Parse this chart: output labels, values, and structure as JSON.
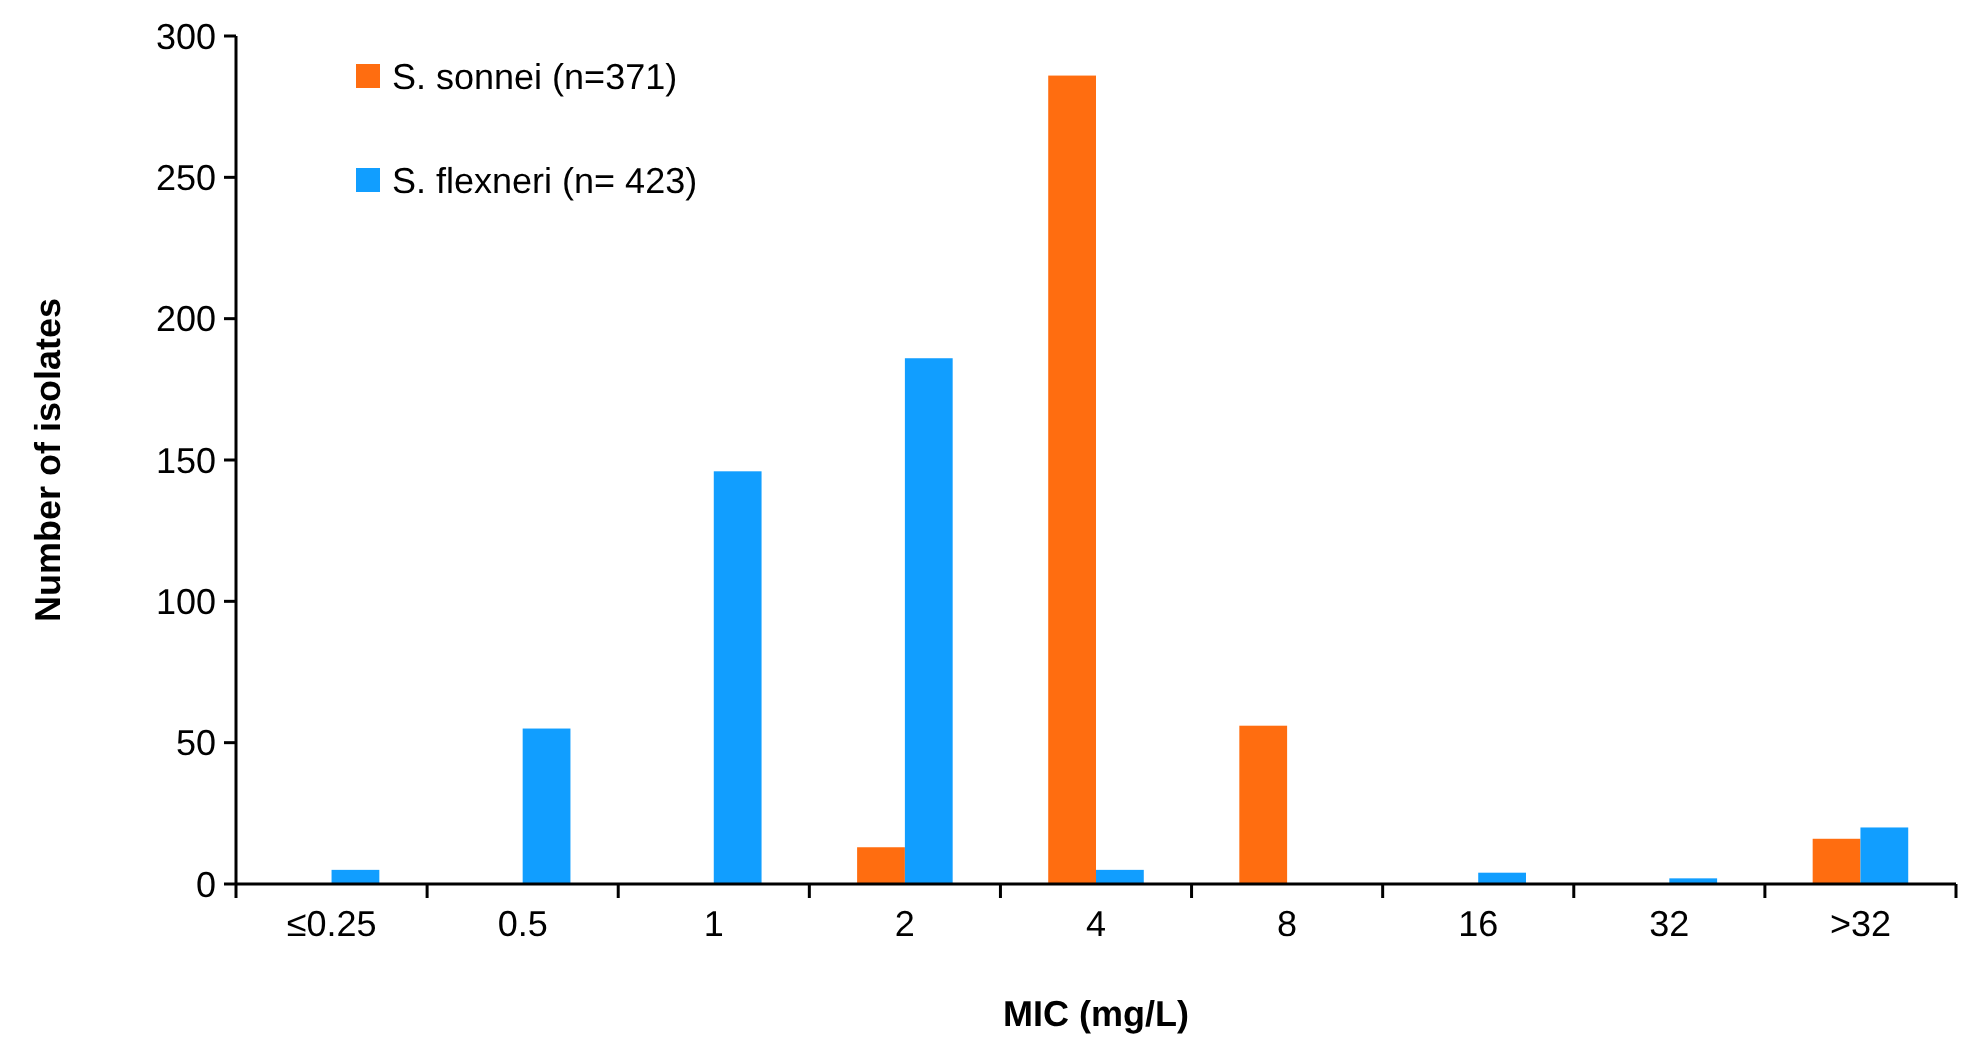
{
  "chart_data": {
    "type": "bar",
    "xlabel": "MIC (mg/L)",
    "ylabel": "Number of isolates",
    "categories": [
      "≤0.25",
      "0.5",
      "1",
      "2",
      "4",
      "8",
      "16",
      "32",
      ">32"
    ],
    "series": [
      {
        "name": "S. sonnei (n=371)",
        "color": "#ff6d10",
        "values": [
          0,
          0,
          0,
          13,
          286,
          56,
          0,
          0,
          16
        ]
      },
      {
        "name": "S. flexneri (n= 423)",
        "color": "#119eff",
        "values": [
          5,
          55,
          146,
          186,
          5,
          0,
          4,
          2,
          20
        ]
      }
    ],
    "ylim": [
      0,
      300
    ],
    "yticks": [
      0,
      50,
      100,
      150,
      200,
      250,
      300
    ],
    "legend": "top left"
  }
}
